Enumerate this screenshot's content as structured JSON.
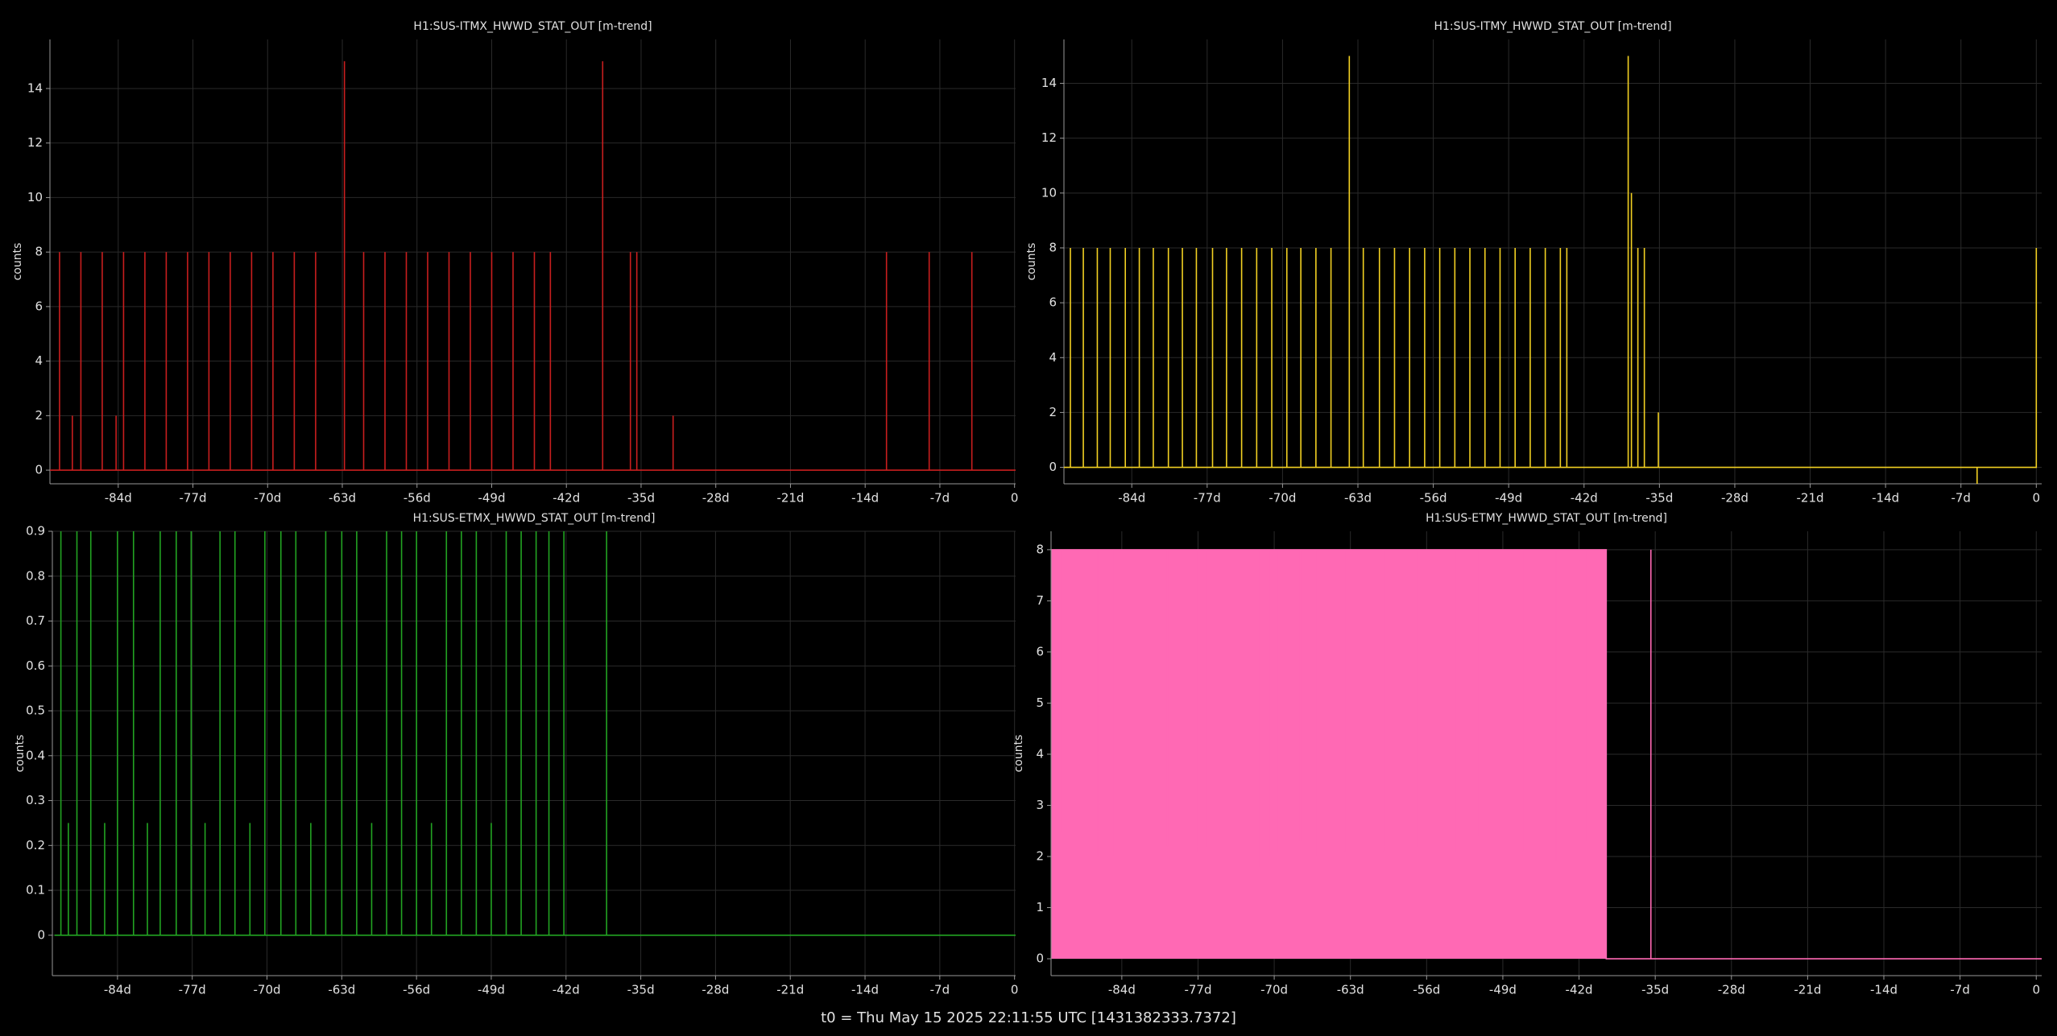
{
  "footer": "t0 = Thu May 15 2025 22:11:55 UTC [1431382333.7372]",
  "chart_data": [
    {
      "type": "line",
      "title": "H1:SUS-ITMX_HWWD_STAT_OUT [m-trend]",
      "y_label": "counts",
      "grid": true,
      "xlim": [
        -90.4,
        0.1
      ],
      "ylim": [
        -0.5,
        15.8
      ],
      "xticks": [
        {
          "value": -84,
          "label": "-84d"
        },
        {
          "value": -77,
          "label": "-77d"
        },
        {
          "value": -70,
          "label": "-70d"
        },
        {
          "value": -63,
          "label": "-63d"
        },
        {
          "value": -56,
          "label": "-56d"
        },
        {
          "value": -49,
          "label": "-49d"
        },
        {
          "value": -42,
          "label": "-42d"
        },
        {
          "value": -35,
          "label": "-35d"
        },
        {
          "value": -28,
          "label": "-28d"
        },
        {
          "value": -21,
          "label": "-21d"
        },
        {
          "value": -14,
          "label": "-14d"
        },
        {
          "value": -7,
          "label": "-7d"
        },
        0
      ],
      "yticks": [
        0,
        2,
        4,
        6,
        8,
        10,
        12,
        14
      ],
      "x": [
        -90.4,
        -89.5,
        -89.5,
        -89.5,
        -88.3,
        -88.3,
        -88.3,
        -87.5,
        -87.5,
        -87.5,
        -85.5,
        -85.5,
        -85.5,
        -84.2,
        -84.2,
        -84.2,
        -83.5,
        -83.5,
        -83.5,
        -81.5,
        -81.5,
        -81.5,
        -79.5,
        -79.5,
        -79.5,
        -77.5,
        -77.5,
        -77.5,
        -75.5,
        -75.5,
        -75.5,
        -73.5,
        -73.5,
        -73.5,
        -71.5,
        -71.5,
        -71.5,
        -69.5,
        -69.5,
        -69.5,
        -67.5,
        -67.5,
        -67.5,
        -65.5,
        -65.5,
        -65.5,
        -62.8,
        -62.8,
        -62.8,
        -61,
        -61,
        -61,
        -59,
        -59,
        -59,
        -57,
        -57,
        -57,
        -55,
        -55,
        -55,
        -53,
        -53,
        -53,
        -51,
        -51,
        -51,
        -49,
        -49,
        -49,
        -47,
        -47,
        -47,
        -45,
        -45,
        -45,
        -43.5,
        -43.5,
        -43.5,
        -38.6,
        -38.6,
        -38.6,
        -36,
        -36,
        -36,
        -35.4,
        -35.4,
        -35.4,
        -32,
        -32,
        -32,
        -12,
        -12,
        -12,
        -8,
        -8,
        -8,
        -4,
        -4,
        -4,
        0.1
      ],
      "series": [
        {
          "name": "H1:SUS-ITMX_HWWD_STAT_OUT",
          "color": "#c81e1e",
          "values": [
            0,
            0,
            8,
            0,
            0,
            2,
            0,
            0,
            8,
            0,
            0,
            8,
            0,
            0,
            2,
            0,
            0,
            8,
            0,
            0,
            8,
            0,
            0,
            8,
            0,
            0,
            8,
            0,
            0,
            8,
            0,
            0,
            8,
            0,
            0,
            8,
            0,
            0,
            8,
            0,
            0,
            8,
            0,
            0,
            8,
            0,
            0,
            15,
            0,
            0,
            8,
            0,
            0,
            8,
            0,
            0,
            8,
            0,
            0,
            8,
            0,
            0,
            8,
            0,
            0,
            8,
            0,
            0,
            8,
            0,
            0,
            8,
            0,
            0,
            8,
            0,
            0,
            8,
            0,
            0,
            15,
            0,
            0,
            8,
            0,
            0,
            8,
            0,
            0,
            2,
            0,
            0,
            8,
            0,
            0,
            8,
            0,
            0,
            8,
            0,
            0
          ]
        }
      ]
    },
    {
      "type": "line",
      "title": "H1:SUS-ITMY_HWWD_STAT_OUT [m-trend]",
      "y_label": "counts",
      "grid": true,
      "xlim": [
        -90.3,
        0.5
      ],
      "ylim": [
        -0.6,
        15.6
      ],
      "xticks": [
        {
          "value": -84,
          "label": "-84d"
        },
        {
          "value": -77,
          "label": "-77d"
        },
        {
          "value": -70,
          "label": "-70d"
        },
        {
          "value": -63,
          "label": "-63d"
        },
        {
          "value": -56,
          "label": "-56d"
        },
        {
          "value": -49,
          "label": "-49d"
        },
        {
          "value": -42,
          "label": "-42d"
        },
        {
          "value": -35,
          "label": "-35d"
        },
        {
          "value": -28,
          "label": "-28d"
        },
        {
          "value": -21,
          "label": "-21d"
        },
        {
          "value": -14,
          "label": "-14d"
        },
        {
          "value": -7,
          "label": "-7d"
        },
        0
      ],
      "yticks": [
        0,
        2,
        4,
        6,
        8,
        10,
        12,
        14
      ],
      "x": [
        -90.3,
        -89.7,
        -89.7,
        -89.7,
        -88.5,
        -88.5,
        -88.5,
        -87.2,
        -87.2,
        -87.2,
        -86,
        -86,
        -86,
        -84.6,
        -84.6,
        -84.6,
        -83.3,
        -83.3,
        -83.3,
        -82,
        -82,
        -82,
        -80.6,
        -80.6,
        -80.6,
        -79.3,
        -79.3,
        -79.3,
        -78,
        -78,
        -78,
        -76.5,
        -76.5,
        -76.5,
        -75.2,
        -75.2,
        -75.2,
        -73.8,
        -73.8,
        -73.8,
        -72.4,
        -72.4,
        -72.4,
        -71,
        -71,
        -71,
        -69.6,
        -69.6,
        -69.6,
        -68.3,
        -68.3,
        -68.3,
        -66.9,
        -66.9,
        -66.9,
        -65.5,
        -65.5,
        -65.5,
        -63.8,
        -63.8,
        -63.8,
        -62.5,
        -62.5,
        -62.5,
        -61,
        -61,
        -61,
        -59.6,
        -59.6,
        -59.6,
        -58.2,
        -58.2,
        -58.2,
        -56.8,
        -56.8,
        -56.8,
        -55.4,
        -55.4,
        -55.4,
        -54,
        -54,
        -54,
        -52.6,
        -52.6,
        -52.6,
        -51.2,
        -51.2,
        -51.2,
        -49.8,
        -49.8,
        -49.8,
        -48.4,
        -48.4,
        -48.4,
        -47,
        -47,
        -47,
        -45.6,
        -45.6,
        -45.6,
        -44.2,
        -44.2,
        -44.2,
        -43.6,
        -43.6,
        -43.6,
        -37.9,
        -37.9,
        -37.9,
        -37.6,
        -37.6,
        -37.6,
        -37,
        -37,
        -37,
        -36.4,
        -36.4,
        -36.4,
        -35.1,
        -35.1,
        -35.1,
        -5.5,
        -5.5,
        -5.5,
        0,
        0
      ],
      "series": [
        {
          "name": "H1:SUS-ITMY_HWWD_STAT_OUT",
          "color": "#f2d022",
          "values": [
            0,
            0,
            8,
            0,
            0,
            8,
            0,
            0,
            8,
            0,
            0,
            8,
            0,
            0,
            8,
            0,
            0,
            8,
            0,
            0,
            8,
            0,
            0,
            8,
            0,
            0,
            8,
            0,
            0,
            8,
            0,
            0,
            8,
            0,
            0,
            8,
            0,
            0,
            8,
            0,
            0,
            8,
            0,
            0,
            8,
            0,
            0,
            8,
            0,
            0,
            8,
            0,
            0,
            8,
            0,
            0,
            8,
            0,
            0,
            15,
            0,
            0,
            8,
            0,
            0,
            8,
            0,
            0,
            8,
            0,
            0,
            8,
            0,
            0,
            8,
            0,
            0,
            8,
            0,
            0,
            8,
            0,
            0,
            8,
            0,
            0,
            8,
            0,
            0,
            8,
            0,
            0,
            8,
            0,
            0,
            8,
            0,
            0,
            8,
            0,
            0,
            8,
            0,
            0,
            8,
            0,
            0,
            15,
            0,
            0,
            10,
            0,
            0,
            8,
            0,
            0,
            8,
            0,
            0,
            2,
            0,
            0,
            -0.6,
            0,
            0,
            8
          ]
        }
      ]
    },
    {
      "type": "line",
      "title": "H1:SUS-ETMX_HWWD_STAT_OUT [m-trend]",
      "y_label": "counts",
      "grid": true,
      "xlim": [
        -90.1,
        0.1
      ],
      "ylim": [
        -0.09,
        0.9
      ],
      "xticks": [
        {
          "value": -84,
          "label": "-84d"
        },
        {
          "value": -77,
          "label": "-77d"
        },
        {
          "value": -70,
          "label": "-70d"
        },
        {
          "value": -63,
          "label": "-63d"
        },
        {
          "value": -56,
          "label": "-56d"
        },
        {
          "value": -49,
          "label": "-49d"
        },
        {
          "value": -42,
          "label": "-42d"
        },
        {
          "value": -35,
          "label": "-35d"
        },
        {
          "value": -28,
          "label": "-28d"
        },
        {
          "value": -21,
          "label": "-21d"
        },
        {
          "value": -14,
          "label": "-14d"
        },
        {
          "value": -7,
          "label": "-7d"
        },
        0
      ],
      "yticks": [
        0,
        0.1,
        0.2,
        0.3,
        0.4,
        0.5,
        0.6,
        0.7,
        0.8,
        0.9
      ],
      "x": [
        -89.9,
        -89.3,
        -89.3,
        -89.3,
        -88.6,
        -88.6,
        -88.6,
        -87.8,
        -87.8,
        -87.8,
        -86.5,
        -86.5,
        -86.5,
        -85.2,
        -85.2,
        -85.2,
        -84,
        -84,
        -84,
        -82.5,
        -82.5,
        -82.5,
        -81.2,
        -81.2,
        -81.2,
        -80,
        -80,
        -80,
        -78.5,
        -78.5,
        -78.5,
        -77.1,
        -77.1,
        -77.1,
        -75.8,
        -75.8,
        -75.8,
        -74.4,
        -74.4,
        -74.4,
        -73,
        -73,
        -73,
        -71.6,
        -71.6,
        -71.6,
        -70.2,
        -70.2,
        -70.2,
        -68.7,
        -68.7,
        -68.7,
        -67.3,
        -67.3,
        -67.3,
        -65.9,
        -65.9,
        -65.9,
        -64.5,
        -64.5,
        -64.5,
        -63,
        -63,
        -63,
        -61.6,
        -61.6,
        -61.6,
        -60.2,
        -60.2,
        -60.2,
        -58.8,
        -58.8,
        -58.8,
        -57.4,
        -57.4,
        -57.4,
        -56,
        -56,
        -56,
        -54.6,
        -54.6,
        -54.6,
        -53.2,
        -53.2,
        -53.2,
        -51.8,
        -51.8,
        -51.8,
        -50.4,
        -50.4,
        -50.4,
        -49,
        -49,
        -49,
        -47.6,
        -47.6,
        -47.6,
        -46.2,
        -46.2,
        -46.2,
        -44.8,
        -44.8,
        -44.8,
        -43.6,
        -43.6,
        -43.6,
        -42.2,
        -42.2,
        -42.2,
        -38.2,
        -38.2,
        -38.2,
        0.1
      ],
      "series": [
        {
          "name": "H1:SUS-ETMX_HWWD_STAT_OUT",
          "color": "#22a322",
          "values": [
            0,
            0,
            0.9,
            0,
            0,
            0.25,
            0,
            0,
            0.9,
            0,
            0,
            0.9,
            0,
            0,
            0.25,
            0,
            0,
            0.9,
            0,
            0,
            0.9,
            0,
            0,
            0.25,
            0,
            0,
            0.9,
            0,
            0,
            0.9,
            0,
            0,
            0.9,
            0,
            0,
            0.25,
            0,
            0,
            0.9,
            0,
            0,
            0.9,
            0,
            0,
            0.25,
            0,
            0,
            0.9,
            0,
            0,
            0.9,
            0,
            0,
            0.9,
            0,
            0,
            0.25,
            0,
            0,
            0.9,
            0,
            0,
            0.9,
            0,
            0,
            0.9,
            0,
            0,
            0.25,
            0,
            0,
            0.9,
            0,
            0,
            0.9,
            0,
            0,
            0.9,
            0,
            0,
            0.25,
            0,
            0,
            0.9,
            0,
            0,
            0.9,
            0,
            0,
            0.9,
            0,
            0,
            0.25,
            0,
            0,
            0.9,
            0,
            0,
            0.9,
            0,
            0,
            0.9,
            0,
            0,
            0.9,
            0,
            0,
            0.9,
            0,
            0,
            0.9,
            0,
            0
          ]
        }
      ]
    },
    {
      "type": "line",
      "title": "H1:SUS-ETMY_HWWD_STAT_OUT [m-trend]",
      "y_label": "counts",
      "grid": true,
      "xlim": [
        -90.5,
        0.5
      ],
      "ylim": [
        -0.33,
        8.36
      ],
      "xticks": [
        {
          "value": -84,
          "label": "-84d"
        },
        {
          "value": -77,
          "label": "-77d"
        },
        {
          "value": -70,
          "label": "-70d"
        },
        {
          "value": -63,
          "label": "-63d"
        },
        {
          "value": -56,
          "label": "-56d"
        },
        {
          "value": -49,
          "label": "-49d"
        },
        {
          "value": -42,
          "label": "-42d"
        },
        {
          "value": -35,
          "label": "-35d"
        },
        {
          "value": -28,
          "label": "-28d"
        },
        {
          "value": -21,
          "label": "-21d"
        },
        {
          "value": -14,
          "label": "-14d"
        },
        {
          "value": -7,
          "label": "-7d"
        },
        0
      ],
      "yticks": [
        0,
        1,
        2,
        3,
        4,
        5,
        6,
        7,
        8
      ],
      "x": [
        -90.4,
        -90.4,
        -89.5,
        -89.5,
        -89.5,
        -86.2,
        -86.2,
        -86.2,
        -84.8,
        -84.8,
        -84.8,
        -79.8,
        -79.8,
        -79.8,
        -77,
        -77,
        -77,
        -76.2,
        -76.2,
        -76.2,
        -71.3,
        -71.3,
        -71.3,
        -70.5,
        -70.5,
        -70.5,
        -69.7,
        -69.7,
        -69.7,
        -67.6,
        -67.6,
        -67.6,
        -66.2,
        -66.2,
        -66.2,
        -63.5,
        -63.5,
        -63.5,
        -60,
        -60,
        -60,
        -56.8,
        -56.8,
        -56.8,
        -53.4,
        -53.4,
        -53.4,
        -51.2,
        -51.2,
        -51.2,
        -49.3,
        -49.3,
        -49.3,
        -47.2,
        -47.2,
        -47.2,
        -44.1,
        -44.1,
        -44.1,
        -41.3,
        -41.3,
        -41.3,
        -39.5,
        -39.5,
        -35.4,
        -35.4,
        -35.4,
        0.5
      ],
      "series": [
        {
          "name": "H1:SUS-ETMY_HWWD_STAT_OUT",
          "color": "#ff69b4",
          "fill": true,
          "values": [
            0,
            8,
            8,
            2.5,
            8,
            8,
            2,
            8,
            8,
            2,
            8,
            8,
            2.2,
            8,
            8,
            2.1,
            8,
            8,
            2.2,
            8,
            8,
            1.8,
            8,
            8,
            2,
            8,
            8,
            2.1,
            8,
            8,
            2.3,
            8,
            8,
            2,
            8,
            8,
            2.1,
            8,
            8,
            2.1,
            8,
            8,
            2.2,
            8,
            8,
            2.1,
            8,
            8,
            2.4,
            8,
            8,
            2.3,
            8,
            8,
            2.1,
            8,
            8,
            1.9,
            8,
            8,
            2.3,
            8,
            8,
            0,
            0,
            8,
            0,
            0
          ]
        }
      ]
    }
  ]
}
